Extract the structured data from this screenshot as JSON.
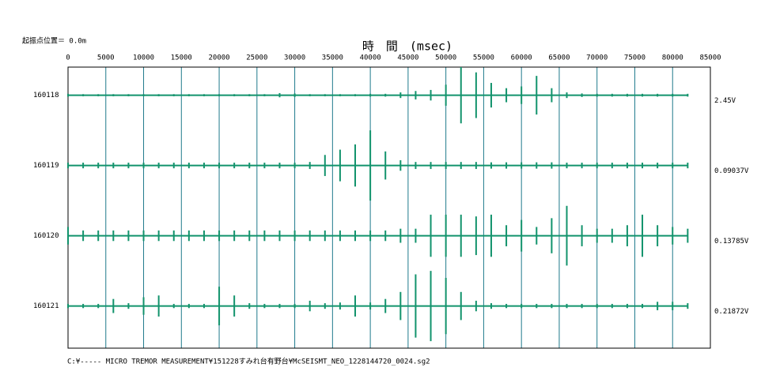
{
  "header_note": "起振点位置＝  0.0m",
  "chart_data": {
    "type": "waveform",
    "title": "時　間　(msec)",
    "xlim": [
      0,
      85000
    ],
    "xticks": [
      0,
      5000,
      10000,
      15000,
      20000,
      25000,
      30000,
      35000,
      40000,
      45000,
      50000,
      55000,
      60000,
      65000,
      70000,
      75000,
      80000,
      85000
    ],
    "grid": true,
    "x": [
      0,
      2000,
      4000,
      6000,
      8000,
      10000,
      12000,
      14000,
      16000,
      18000,
      20000,
      22000,
      24000,
      26000,
      28000,
      30000,
      32000,
      34000,
      36000,
      38000,
      40000,
      42000,
      44000,
      46000,
      48000,
      50000,
      52000,
      54000,
      56000,
      58000,
      60000,
      62000,
      64000,
      66000,
      68000,
      70000,
      72000,
      74000,
      76000,
      78000,
      80000,
      82000
    ],
    "series": [
      {
        "name": "160118",
        "scale_label": "2.45V",
        "color": "#12936c",
        "values": [
          0.04,
          0.03,
          0.03,
          0.03,
          0.03,
          0.03,
          0.03,
          0.03,
          0.03,
          0.03,
          0.03,
          0.03,
          0.03,
          0.03,
          0.06,
          0.05,
          0.03,
          0.03,
          0.03,
          0.03,
          0.04,
          0.04,
          0.08,
          0.12,
          0.15,
          0.3,
          0.8,
          0.65,
          0.35,
          0.2,
          0.25,
          0.55,
          0.2,
          0.08,
          0.05,
          0.04,
          0.04,
          0.04,
          0.04,
          0.04,
          0.04,
          0.04
        ]
      },
      {
        "name": "160119",
        "scale_label": "0.09037V",
        "color": "#12936c",
        "values": [
          0.08,
          0.08,
          0.08,
          0.08,
          0.08,
          0.08,
          0.08,
          0.08,
          0.08,
          0.08,
          0.08,
          0.08,
          0.08,
          0.08,
          0.08,
          0.08,
          0.1,
          0.3,
          0.45,
          0.6,
          1.0,
          0.4,
          0.15,
          0.1,
          0.1,
          0.1,
          0.1,
          0.1,
          0.09,
          0.09,
          0.09,
          0.09,
          0.09,
          0.08,
          0.08,
          0.08,
          0.08,
          0.08,
          0.08,
          0.08,
          0.08,
          0.08
        ]
      },
      {
        "name": "160120",
        "scale_label": "0.13785V",
        "color": "#12936c",
        "values": [
          0.25,
          0.15,
          0.15,
          0.15,
          0.15,
          0.15,
          0.15,
          0.15,
          0.15,
          0.15,
          0.15,
          0.15,
          0.15,
          0.15,
          0.15,
          0.15,
          0.15,
          0.15,
          0.15,
          0.15,
          0.15,
          0.15,
          0.2,
          0.2,
          0.6,
          0.6,
          0.6,
          0.55,
          0.6,
          0.3,
          0.45,
          0.25,
          0.5,
          0.85,
          0.3,
          0.2,
          0.2,
          0.3,
          0.6,
          0.3,
          0.25,
          0.2
        ]
      },
      {
        "name": "160121",
        "scale_label": "0.21872V",
        "color": "#12936c",
        "values": [
          0.06,
          0.06,
          0.06,
          0.2,
          0.08,
          0.25,
          0.3,
          0.06,
          0.06,
          0.06,
          0.55,
          0.3,
          0.08,
          0.06,
          0.06,
          0.06,
          0.15,
          0.08,
          0.1,
          0.3,
          0.1,
          0.2,
          0.4,
          0.9,
          1.0,
          0.8,
          0.4,
          0.15,
          0.08,
          0.06,
          0.06,
          0.06,
          0.06,
          0.06,
          0.06,
          0.06,
          0.06,
          0.06,
          0.06,
          0.12,
          0.12,
          0.08
        ]
      }
    ]
  },
  "footer": "C:¥----- MICRO TREMOR MEASUREMENT¥151228すみれ台有野台¥McSEISMT_NEO_1228144720_0024.sg2"
}
